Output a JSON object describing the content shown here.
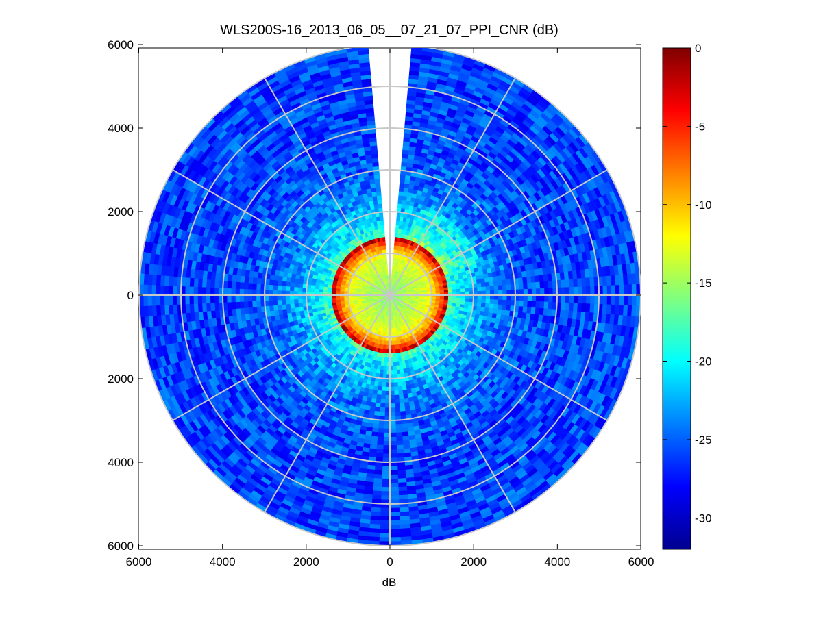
{
  "chart_data": {
    "type": "heatmap",
    "subtype": "polar-ppi",
    "title": "WLS200S-16_2013_06_05__07_21_07_PPI_CNR (dB)",
    "xlabel": "dB",
    "ylabel": "",
    "xlim": [
      -6000,
      6000
    ],
    "ylim": [
      -6000,
      6000
    ],
    "x_tick_labels": [
      "6000",
      "4000",
      "2000",
      "0",
      "2000",
      "4000",
      "6000"
    ],
    "y_tick_labels": [
      "6000",
      "4000",
      "2000",
      "0",
      "2000",
      "4000",
      "6000"
    ],
    "max_range": 6000,
    "range_rings": [
      1000,
      2000,
      3000,
      4000,
      5000,
      6000
    ],
    "spoke_interval_deg": 30,
    "blank_sector_deg": [
      -4,
      4
    ],
    "grid": true,
    "colorbar": {
      "label": "",
      "min": -32,
      "max": 0,
      "ticks": [
        0,
        -5,
        -10,
        -15,
        -20,
        -25,
        -30
      ],
      "tick_labels": [
        "0",
        "-5",
        "-10",
        "-15",
        "-20",
        "-25",
        "-30"
      ],
      "colormap": "jet"
    },
    "radial_profile": {
      "range": [
        0,
        300,
        600,
        900,
        1200,
        1350,
        1450,
        1600,
        2000,
        2500,
        3000,
        4000,
        6000
      ],
      "cnr_db": [
        -16,
        -15,
        -14,
        -13,
        -8,
        -3,
        -18,
        -20,
        -22,
        -24,
        -25,
        -26,
        -26
      ]
    }
  }
}
